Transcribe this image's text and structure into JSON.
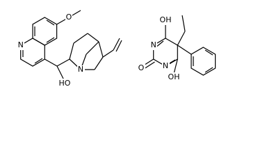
{
  "molecules": [
    {
      "atoms": [
        "O",
        "N",
        "N",
        "HO"
      ]
    },
    {
      "atoms": [
        "OH",
        "N",
        "O",
        "N",
        "OH"
      ]
    }
  ]
}
